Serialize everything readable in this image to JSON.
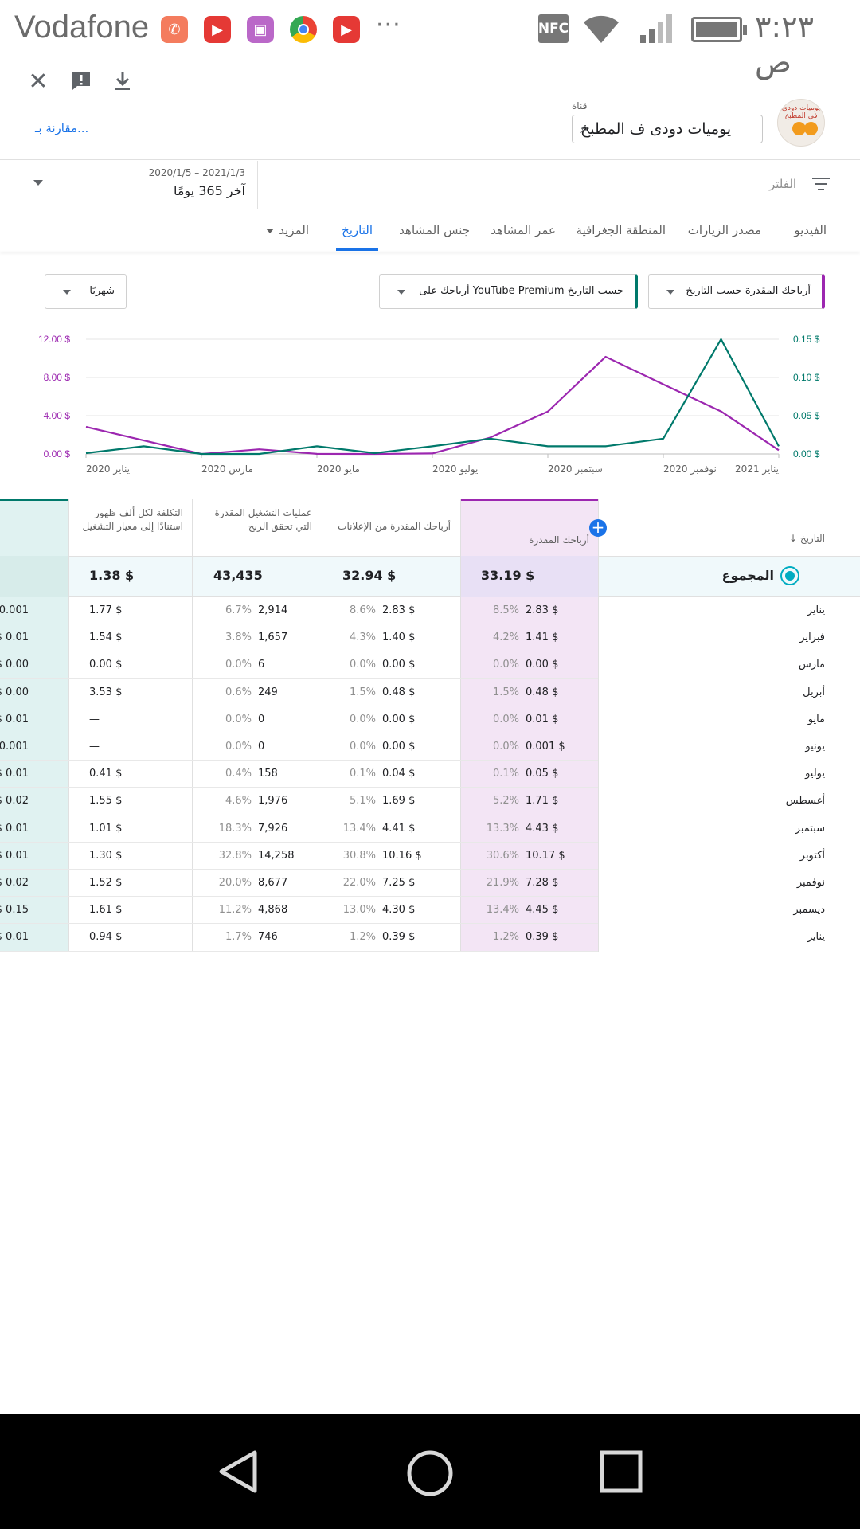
{
  "status_bar": {
    "carrier": "Vodafone",
    "more": "···",
    "nfc": "NFC",
    "time": "٣:٢٣ ص"
  },
  "header": {
    "close_icon": "close-icon",
    "feedback_icon": "feedback-icon",
    "download_icon": "download-icon",
    "compare_link": "مقارنة بـ...",
    "channel_label": "قناة",
    "channel_value": "يوميات دودى ف المطبخ",
    "avatar_text": "يوميات دودي في المطبخ"
  },
  "filter": {
    "label": "الفلتر",
    "date_range": "2020/1/5 – 2021/1/3",
    "period": "آخر 365 يومًا"
  },
  "tabs": [
    {
      "label": "الفيديو",
      "active": false
    },
    {
      "label": "مصدر الزيارات",
      "active": false
    },
    {
      "label": "المنطقة الجغرافية",
      "active": false
    },
    {
      "label": "عمر المشاهد",
      "active": false
    },
    {
      "label": "جنس المشاهد",
      "active": false
    },
    {
      "label": "التاريخ",
      "active": true
    },
    {
      "label": "المزيد",
      "active": false
    }
  ],
  "selectors": {
    "primary": "أرباحك المقدرة حسب التاريخ",
    "secondary": "أرباحك على YouTube Premium حسب التاريخ",
    "interval": "شهريًا",
    "primary_color": "#9c27b0",
    "secondary_color": "#00796b"
  },
  "chart_data": {
    "type": "line",
    "x": [
      "يناير 2020",
      "فبراير",
      "مارس 2020",
      "أبريل",
      "مايو 2020",
      "يونيو",
      "يوليو 2020",
      "أغسطس",
      "سبتمبر 2020",
      "أكتوبر",
      "نوفمبر 2020",
      "ديسمبر",
      "يناير 2021"
    ],
    "x_tick_labels": [
      "يناير 2020",
      "مارس 2020",
      "مايو 2020",
      "يوليو 2020",
      "سبتمبر 2020",
      "نوفمبر 2020",
      "يناير 2021"
    ],
    "left_axis": {
      "ticks": [
        "0.00 $",
        "4.00 $",
        "8.00 $",
        "12.00 $"
      ],
      "ylim": [
        0,
        12
      ]
    },
    "right_axis": {
      "ticks": [
        "0.00 $",
        "0.05 $",
        "0.10 $",
        "0.15 $"
      ],
      "ylim": [
        0,
        0.15
      ]
    },
    "series": [
      {
        "name": "أرباحك المقدرة",
        "axis": "left",
        "color": "#9c27b0",
        "values": [
          2.83,
          1.41,
          0.0,
          0.48,
          0.01,
          0.001,
          0.05,
          1.71,
          4.43,
          10.17,
          7.28,
          4.45,
          0.39
        ]
      },
      {
        "name": "أرباحك على YouTube Premium",
        "axis": "right",
        "color": "#00796b",
        "values": [
          0.001,
          0.01,
          0.0,
          0.0,
          0.01,
          0.001,
          0.01,
          0.02,
          0.01,
          0.01,
          0.02,
          0.15,
          0.01
        ]
      }
    ],
    "grid": true
  },
  "table": {
    "date_header": "التاريخ",
    "sort_icon": "arrow-down-icon",
    "columns": [
      "أرباحك المقدرة",
      "أرباحك المقدرة من الإعلانات",
      "عمليات التشغيل المقدرة التي تحقق الربح",
      "التكلفة لكل ألف ظهور استنادًا إلى معيار التشغيل"
    ],
    "total_label": "المجموع",
    "totals": [
      "33.19 $",
      "32.94 $",
      "43,435",
      "1.38 $"
    ],
    "rows": [
      {
        "month": "يناير",
        "est_pct": "8.5%",
        "est": "2.83 $",
        "ads_pct": "8.6%",
        "ads": "2.83 $",
        "plays_pct": "6.7%",
        "plays": "2,914",
        "cpm": "1.77 $",
        "premium": "0.001 $"
      },
      {
        "month": "فبراير",
        "est_pct": "4.2%",
        "est": "1.41 $",
        "ads_pct": "4.3%",
        "ads": "1.40 $",
        "plays_pct": "3.8%",
        "plays": "1,657",
        "cpm": "1.54 $",
        "premium": "0.01 $"
      },
      {
        "month": "مارس",
        "est_pct": "0.0%",
        "est": "0.00 $",
        "ads_pct": "0.0%",
        "ads": "0.00 $",
        "plays_pct": "0.0%",
        "plays": "6",
        "cpm": "0.00 $",
        "premium": "0.00 $"
      },
      {
        "month": "أبريل",
        "est_pct": "1.5%",
        "est": "0.48 $",
        "ads_pct": "1.5%",
        "ads": "0.48 $",
        "plays_pct": "0.6%",
        "plays": "249",
        "cpm": "3.53 $",
        "premium": "0.00 $"
      },
      {
        "month": "مايو",
        "est_pct": "0.0%",
        "est": "0.01 $",
        "ads_pct": "0.0%",
        "ads": "0.00 $",
        "plays_pct": "0.0%",
        "plays": "0",
        "cpm": "—",
        "premium": "0.01 $"
      },
      {
        "month": "يونيو",
        "est_pct": "0.0%",
        "est": "0.001 $",
        "ads_pct": "0.0%",
        "ads": "0.00 $",
        "plays_pct": "0.0%",
        "plays": "0",
        "cpm": "—",
        "premium": "0.001 $"
      },
      {
        "month": "يوليو",
        "est_pct": "0.1%",
        "est": "0.05 $",
        "ads_pct": "0.1%",
        "ads": "0.04 $",
        "plays_pct": "0.4%",
        "plays": "158",
        "cpm": "0.41 $",
        "premium": "0.01 $"
      },
      {
        "month": "أغسطس",
        "est_pct": "5.2%",
        "est": "1.71 $",
        "ads_pct": "5.1%",
        "ads": "1.69 $",
        "plays_pct": "4.6%",
        "plays": "1,976",
        "cpm": "1.55 $",
        "premium": "0.02 $"
      },
      {
        "month": "سبتمبر",
        "est_pct": "13.3%",
        "est": "4.43 $",
        "ads_pct": "13.4%",
        "ads": "4.41 $",
        "plays_pct": "18.3%",
        "plays": "7,926",
        "cpm": "1.01 $",
        "premium": "0.01 $"
      },
      {
        "month": "أكتوبر",
        "est_pct": "30.6%",
        "est": "10.17 $",
        "ads_pct": "30.8%",
        "ads": "10.16 $",
        "plays_pct": "32.8%",
        "plays": "14,258",
        "cpm": "1.30 $",
        "premium": "0.01 $"
      },
      {
        "month": "نوفمبر",
        "est_pct": "21.9%",
        "est": "7.28 $",
        "ads_pct": "22.0%",
        "ads": "7.25 $",
        "plays_pct": "20.0%",
        "plays": "8,677",
        "cpm": "1.52 $",
        "premium": "0.02 $"
      },
      {
        "month": "ديسمبر",
        "est_pct": "13.4%",
        "est": "4.45 $",
        "ads_pct": "13.0%",
        "ads": "4.30 $",
        "plays_pct": "11.2%",
        "plays": "4,868",
        "cpm": "1.61 $",
        "premium": "0.15 $"
      },
      {
        "month": "يناير",
        "est_pct": "1.2%",
        "est": "0.39 $",
        "ads_pct": "1.2%",
        "ads": "0.39 $",
        "plays_pct": "1.7%",
        "plays": "746",
        "cpm": "0.94 $",
        "premium": "0.01 $"
      }
    ],
    "colors": {
      "est_bg": "#f3e5f5",
      "est_bg_total": "#e8e0f5",
      "premium_bg": "#e0f2f1",
      "total_row_bg": "#f0f9fb",
      "add_button": "#1a73e8"
    }
  },
  "nav_bar": {
    "back_icon": "back-triangle-icon",
    "home_icon": "home-circle-icon",
    "recents_icon": "recents-square-icon"
  }
}
